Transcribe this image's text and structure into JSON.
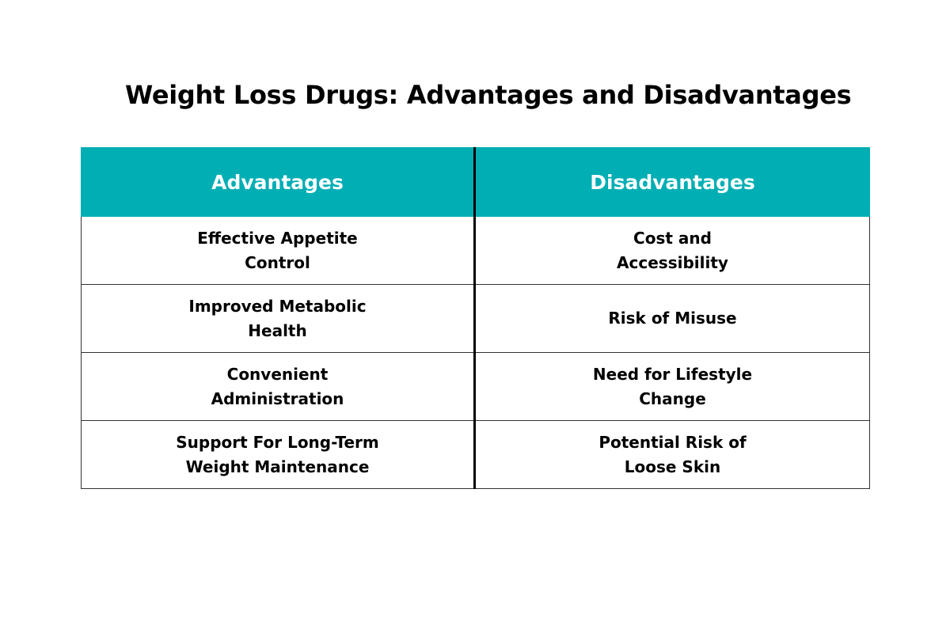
{
  "title": "Weight Loss Drugs: Advantages and Disadvantages",
  "table": {
    "header_color": "#00aeb4",
    "headers": {
      "advantages": "Advantages",
      "disadvantages": "Disadvantages"
    },
    "rows": [
      {
        "advantage": "Effective Appetite Control",
        "disadvantage": "Cost and Accessibility"
      },
      {
        "advantage": "Improved Metabolic Health",
        "disadvantage": "Risk of Misuse"
      },
      {
        "advantage": "Convenient Administration",
        "disadvantage": "Need for Lifestyle Change"
      },
      {
        "advantage": "Support For Long-Term Weight Maintenance",
        "disadvantage": "Potential Risk of Loose Skin"
      }
    ]
  }
}
